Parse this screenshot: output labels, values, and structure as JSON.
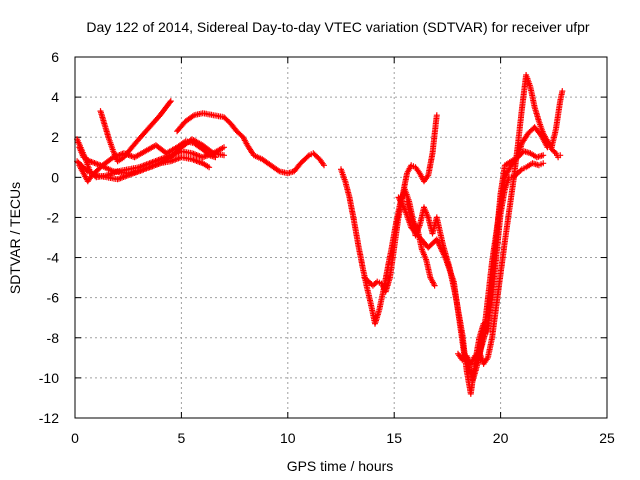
{
  "chart_data": {
    "type": "scatter",
    "title": "Day 122 of 2014, Sidereal Day-to-day VTEC variation (SDTVAR) for receiver ufpr",
    "xlabel": "GPS time / hours",
    "ylabel": "SDTVAR / TECUs",
    "xlim": [
      0,
      25
    ],
    "ylim": [
      -12,
      6
    ],
    "xticks": [
      0,
      5,
      10,
      15,
      20,
      25
    ],
    "yticks": [
      -12,
      -10,
      -8,
      -6,
      -4,
      -2,
      0,
      2,
      4,
      6
    ],
    "grid": true,
    "marker": "+",
    "series_color": "#ff0000",
    "series": [
      {
        "values": [
          [
            0.1,
            1.9
          ],
          [
            0.3,
            1.4
          ],
          [
            0.5,
            0.9
          ],
          [
            0.7,
            0.3
          ],
          [
            1.0,
            0.0
          ],
          [
            1.5,
            0.1
          ],
          [
            2.0,
            0.3
          ],
          [
            2.5,
            0.4
          ],
          [
            3.0,
            0.5
          ],
          [
            3.5,
            0.7
          ],
          [
            4.0,
            0.9
          ],
          [
            4.5,
            1.1
          ],
          [
            5.0,
            1.3
          ],
          [
            5.5,
            1.2
          ],
          [
            6.0,
            1.0
          ],
          [
            6.5,
            1.2
          ],
          [
            7.0,
            1.5
          ]
        ]
      },
      {
        "values": [
          [
            0.2,
            1.5
          ],
          [
            0.4,
            1.0
          ],
          [
            0.7,
            0.8
          ],
          [
            1.2,
            0.6
          ],
          [
            1.8,
            0.3
          ],
          [
            2.5,
            0.2
          ],
          [
            3.0,
            0.3
          ],
          [
            3.5,
            0.5
          ],
          [
            4.0,
            0.7
          ],
          [
            4.5,
            0.8
          ],
          [
            5.0,
            1.0
          ],
          [
            5.5,
            0.9
          ],
          [
            6.0,
            0.7
          ],
          [
            6.3,
            0.5
          ]
        ]
      },
      {
        "values": [
          [
            0.2,
            0.6
          ],
          [
            0.4,
            0.2
          ],
          [
            0.6,
            -0.2
          ],
          [
            0.8,
            0.1
          ],
          [
            1.3,
            0.6
          ],
          [
            1.8,
            1.0
          ],
          [
            2.3,
            1.2
          ],
          [
            2.8,
            1.0
          ],
          [
            3.3,
            1.3
          ],
          [
            3.8,
            1.6
          ],
          [
            4.3,
            1.2
          ],
          [
            4.8,
            1.5
          ],
          [
            5.2,
            1.8
          ],
          [
            5.6,
            1.7
          ],
          [
            6.0,
            1.4
          ],
          [
            6.3,
            1.1
          ],
          [
            6.6,
            1.0
          ]
        ]
      },
      {
        "values": [
          [
            0.1,
            0.8
          ],
          [
            0.3,
            0.6
          ],
          [
            0.6,
            0.3
          ],
          [
            1.0,
            0.1
          ],
          [
            1.5,
            0.0
          ],
          [
            2.0,
            -0.1
          ],
          [
            2.5,
            0.1
          ],
          [
            3.0,
            0.3
          ],
          [
            3.5,
            0.5
          ],
          [
            4.0,
            0.7
          ],
          [
            4.5,
            1.0
          ],
          [
            5.0,
            1.5
          ],
          [
            5.5,
            1.9
          ],
          [
            6.0,
            1.6
          ],
          [
            6.5,
            1.2
          ],
          [
            7.0,
            1.1
          ]
        ]
      },
      {
        "values": [
          [
            1.2,
            3.3
          ],
          [
            1.4,
            2.6
          ],
          [
            1.6,
            1.9
          ],
          [
            1.8,
            1.3
          ],
          [
            2.0,
            0.8
          ],
          [
            2.3,
            1.0
          ],
          [
            2.6,
            1.4
          ],
          [
            3.0,
            1.9
          ],
          [
            3.5,
            2.5
          ],
          [
            4.0,
            3.1
          ],
          [
            4.5,
            3.8
          ]
        ]
      },
      {
        "values": [
          [
            4.8,
            2.3
          ],
          [
            5.2,
            2.8
          ],
          [
            5.6,
            3.1
          ],
          [
            6.0,
            3.2
          ],
          [
            6.5,
            3.1
          ],
          [
            7.0,
            3.0
          ],
          [
            7.3,
            2.7
          ],
          [
            7.6,
            2.3
          ],
          [
            7.9,
            2.0
          ],
          [
            8.1,
            1.6
          ],
          [
            8.4,
            1.1
          ],
          [
            8.8,
            0.9
          ],
          [
            9.2,
            0.6
          ],
          [
            9.6,
            0.3
          ],
          [
            10.0,
            0.2
          ],
          [
            10.3,
            0.3
          ],
          [
            10.6,
            0.7
          ],
          [
            11.0,
            1.1
          ],
          [
            11.2,
            1.2
          ],
          [
            11.5,
            0.9
          ],
          [
            11.7,
            0.6
          ]
        ]
      },
      {
        "values": [
          [
            12.5,
            0.4
          ],
          [
            12.7,
            -0.2
          ],
          [
            12.9,
            -1.0
          ],
          [
            13.1,
            -2.1
          ],
          [
            13.3,
            -3.3
          ],
          [
            13.5,
            -4.4
          ],
          [
            13.7,
            -5.4
          ],
          [
            13.9,
            -6.3
          ],
          [
            14.1,
            -7.3
          ],
          [
            14.3,
            -6.6
          ],
          [
            14.5,
            -5.6
          ],
          [
            14.7,
            -4.5
          ],
          [
            14.9,
            -3.4
          ],
          [
            15.1,
            -2.2
          ],
          [
            15.3,
            -1.2
          ],
          [
            15.5,
            -0.6
          ],
          [
            15.7,
            -1.2
          ],
          [
            15.9,
            -2.2
          ],
          [
            16.1,
            -2.6
          ],
          [
            16.3,
            -3.6
          ],
          [
            16.5,
            -4.1
          ],
          [
            16.7,
            -5.0
          ],
          [
            16.9,
            -5.4
          ]
        ]
      },
      {
        "values": [
          [
            13.6,
            -5.0
          ],
          [
            13.8,
            -5.2
          ],
          [
            14.0,
            -5.4
          ],
          [
            14.2,
            -5.2
          ],
          [
            14.4,
            -5.3
          ],
          [
            14.6,
            -5.7
          ],
          [
            14.8,
            -5.0
          ],
          [
            15.0,
            -3.5
          ],
          [
            15.2,
            -2.0
          ],
          [
            15.4,
            -0.9
          ],
          [
            15.6,
            0.2
          ],
          [
            15.8,
            0.6
          ],
          [
            16.0,
            0.5
          ],
          [
            16.2,
            0.2
          ],
          [
            16.4,
            -0.2
          ],
          [
            16.6,
            0.1
          ],
          [
            16.8,
            1.2
          ],
          [
            17.0,
            3.1
          ]
        ]
      },
      {
        "values": [
          [
            15.6,
            -1.2
          ],
          [
            15.8,
            -2.0
          ],
          [
            16.0,
            -2.9
          ],
          [
            16.2,
            -2.4
          ],
          [
            16.4,
            -1.5
          ],
          [
            16.6,
            -2.0
          ],
          [
            16.8,
            -2.8
          ],
          [
            17.0,
            -2.0
          ],
          [
            17.3,
            -3.4
          ],
          [
            17.6,
            -4.5
          ],
          [
            17.9,
            -6.0
          ],
          [
            18.2,
            -7.8
          ],
          [
            18.4,
            -9.6
          ],
          [
            18.6,
            -10.8
          ],
          [
            18.8,
            -9.2
          ],
          [
            19.0,
            -8.0
          ],
          [
            19.2,
            -7.3
          ],
          [
            19.4,
            -7.7
          ],
          [
            19.6,
            -5.2
          ],
          [
            19.8,
            -3.0
          ],
          [
            20.0,
            -0.8
          ],
          [
            20.2,
            0.6
          ],
          [
            20.5,
            0.8
          ],
          [
            20.8,
            1.0
          ],
          [
            21.0,
            1.7
          ],
          [
            21.3,
            2.2
          ],
          [
            21.6,
            2.5
          ],
          [
            21.9,
            2.1
          ],
          [
            22.2,
            1.5
          ]
        ]
      },
      {
        "values": [
          [
            15.2,
            -1.0
          ],
          [
            15.5,
            -1.6
          ],
          [
            15.8,
            -2.5
          ],
          [
            16.2,
            -3.0
          ],
          [
            16.6,
            -3.5
          ],
          [
            17.0,
            -3.1
          ],
          [
            17.4,
            -4.0
          ],
          [
            17.8,
            -5.2
          ],
          [
            18.1,
            -7.4
          ],
          [
            18.3,
            -8.9
          ],
          [
            18.5,
            -9.4
          ],
          [
            18.7,
            -10.1
          ],
          [
            19.0,
            -9.0
          ],
          [
            19.3,
            -7.0
          ],
          [
            19.6,
            -4.2
          ],
          [
            19.9,
            -2.0
          ],
          [
            20.2,
            0.0
          ],
          [
            20.5,
            0.6
          ],
          [
            20.8,
            1.0
          ],
          [
            21.1,
            1.3
          ],
          [
            21.4,
            1.2
          ],
          [
            21.7,
            1.0
          ],
          [
            22.0,
            1.1
          ]
        ]
      },
      {
        "values": [
          [
            18.0,
            -8.8
          ],
          [
            18.2,
            -9.1
          ],
          [
            18.4,
            -8.9
          ],
          [
            18.6,
            -9.3
          ],
          [
            18.8,
            -8.9
          ],
          [
            19.0,
            -8.8
          ],
          [
            19.2,
            -8.1
          ],
          [
            19.4,
            -7.3
          ],
          [
            19.6,
            -6.0
          ],
          [
            19.8,
            -3.9
          ],
          [
            20.0,
            -1.8
          ],
          [
            20.2,
            -0.6
          ],
          [
            20.4,
            0.0
          ],
          [
            20.6,
            0.0
          ],
          [
            20.8,
            0.2
          ],
          [
            21.0,
            0.4
          ],
          [
            21.2,
            0.5
          ],
          [
            21.5,
            0.7
          ],
          [
            21.8,
            0.6
          ],
          [
            22.0,
            0.7
          ]
        ]
      },
      {
        "values": [
          [
            19.0,
            -8.7
          ],
          [
            19.2,
            -9.3
          ],
          [
            19.4,
            -9.0
          ],
          [
            19.6,
            -8.0
          ],
          [
            19.8,
            -6.4
          ],
          [
            20.0,
            -4.8
          ],
          [
            20.2,
            -3.2
          ],
          [
            20.4,
            -1.7
          ],
          [
            20.6,
            -0.2
          ],
          [
            20.8,
            1.5
          ],
          [
            21.0,
            3.4
          ],
          [
            21.2,
            5.1
          ],
          [
            21.4,
            4.5
          ],
          [
            21.6,
            3.5
          ],
          [
            21.8,
            2.8
          ],
          [
            22.0,
            2.2
          ],
          [
            22.2,
            1.8
          ],
          [
            22.4,
            1.5
          ],
          [
            22.6,
            2.4
          ],
          [
            22.8,
            3.8
          ],
          [
            22.9,
            4.3
          ]
        ]
      },
      {
        "values": [
          [
            22.0,
            2.1
          ],
          [
            22.2,
            1.8
          ],
          [
            22.4,
            1.4
          ],
          [
            22.6,
            1.2
          ],
          [
            22.7,
            1.0
          ],
          [
            22.8,
            1.1
          ]
        ]
      }
    ]
  }
}
